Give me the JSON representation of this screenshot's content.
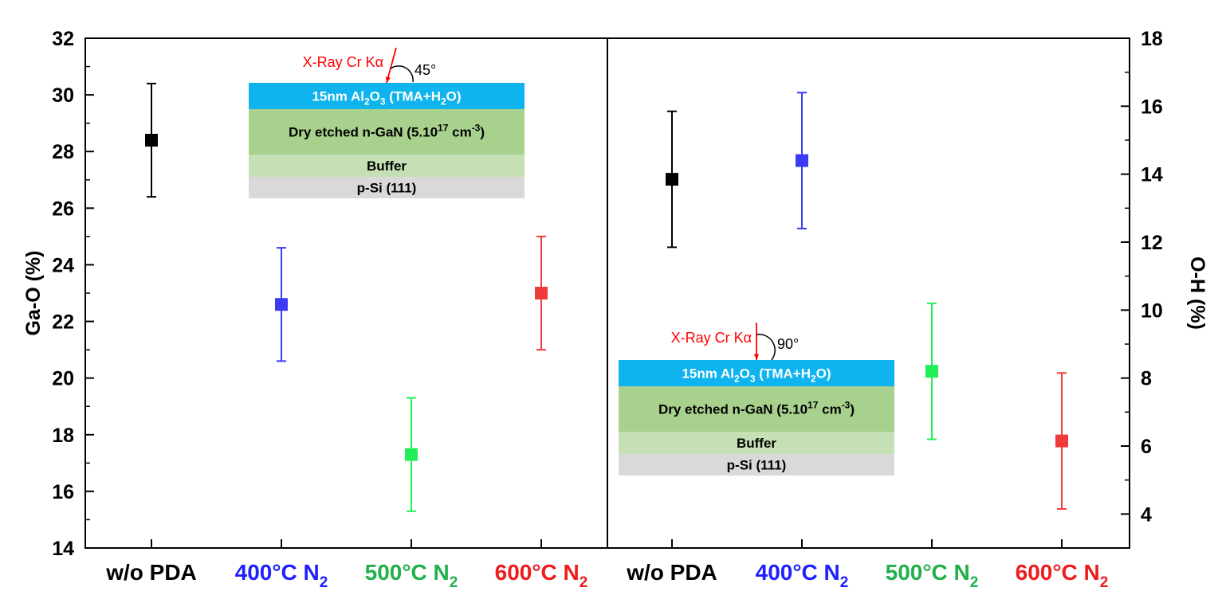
{
  "chart_data": {
    "type": "scatter",
    "left_panel": {
      "ylabel": "Ga-O (%)",
      "ylim": [
        14,
        32
      ],
      "yticks": [
        "14",
        "16",
        "18",
        "20",
        "22",
        "24",
        "26",
        "28",
        "30",
        "32"
      ],
      "points": [
        {
          "category": "w/o PDA",
          "value": 28.4,
          "error": 2.0,
          "color": "#000000"
        },
        {
          "category": "400°C N2",
          "value": 22.6,
          "error": 2.0,
          "color": "#3b3bf5"
        },
        {
          "category": "500°C N2",
          "value": 17.3,
          "error": 2.0,
          "color": "#22ee5a"
        },
        {
          "category": "600°C N2",
          "value": 23.0,
          "error": 2.0,
          "color": "#f03b3b"
        }
      ]
    },
    "right_panel": {
      "ylabel": "O-H (%)",
      "ylim": [
        3,
        18
      ],
      "yticks": [
        "4",
        "6",
        "8",
        "10",
        "12",
        "14",
        "16",
        "18"
      ],
      "points": [
        {
          "category": "w/o PDA",
          "value": 13.85,
          "error": 2.0,
          "color": "#000000"
        },
        {
          "category": "400°C N2",
          "value": 14.4,
          "error": 2.0,
          "color": "#3b3bf5"
        },
        {
          "category": "500°C N2",
          "value": 8.2,
          "error": 2.0,
          "color": "#22ee5a"
        },
        {
          "category": "600°C N2",
          "value": 6.15,
          "error": 2.0,
          "color": "#f03b3b"
        }
      ]
    },
    "x_labels": [
      {
        "main": "w/o PDA",
        "sub": "",
        "color": "#000000"
      },
      {
        "main": "400°C N",
        "sub": "2",
        "color": "#1f1fff"
      },
      {
        "main": "500°C N",
        "sub": "2",
        "color": "#22b04b"
      },
      {
        "main": "600°C N",
        "sub": "2",
        "color": "#ee1c1c"
      },
      {
        "main": "w/o PDA",
        "sub": "",
        "color": "#000000"
      },
      {
        "main": "400°C N",
        "sub": "2",
        "color": "#1f1fff"
      },
      {
        "main": "500°C N",
        "sub": "2",
        "color": "#22b04b"
      },
      {
        "main": "600°C N",
        "sub": "2",
        "color": "#ee1c1c"
      }
    ]
  },
  "insets": [
    {
      "xray_label": "X-Ray Cr Kα",
      "angle_label": "45°",
      "layers": [
        {
          "name": "layer-al2o3",
          "parts": [
            "15nm Al",
            "2",
            "O",
            "3",
            " (TMA+H",
            "2",
            "O)"
          ],
          "color": "#0fb4ee",
          "text_color": "#ffffff"
        },
        {
          "name": "layer-gan",
          "parts": [
            "Dry etched n-GaN (5.10",
            "17",
            " cm",
            "-3",
            ")"
          ],
          "color": "#a9d18e",
          "text_color": "#000000"
        },
        {
          "name": "layer-buffer",
          "parts": [
            "Buffer"
          ],
          "color": "#c5e0b4",
          "text_color": "#000000"
        },
        {
          "name": "layer-psi",
          "parts": [
            "p-Si (111)"
          ],
          "color": "#d9d9d9",
          "text_color": "#000000"
        }
      ]
    },
    {
      "xray_label": "X-Ray Cr Kα",
      "angle_label": "90°",
      "layers": [
        {
          "name": "layer-al2o3",
          "parts": [
            "15nm Al",
            "2",
            "O",
            "3",
            " (TMA+H",
            "2",
            "O)"
          ],
          "color": "#0fb4ee",
          "text_color": "#ffffff"
        },
        {
          "name": "layer-gan",
          "parts": [
            "Dry etched n-GaN (5.10",
            "17",
            " cm",
            "-3",
            ")"
          ],
          "color": "#a9d18e",
          "text_color": "#000000"
        },
        {
          "name": "layer-buffer",
          "parts": [
            "Buffer"
          ],
          "color": "#c5e0b4",
          "text_color": "#000000"
        },
        {
          "name": "layer-psi",
          "parts": [
            "p-Si (111)"
          ],
          "color": "#d9d9d9",
          "text_color": "#000000"
        }
      ]
    }
  ]
}
